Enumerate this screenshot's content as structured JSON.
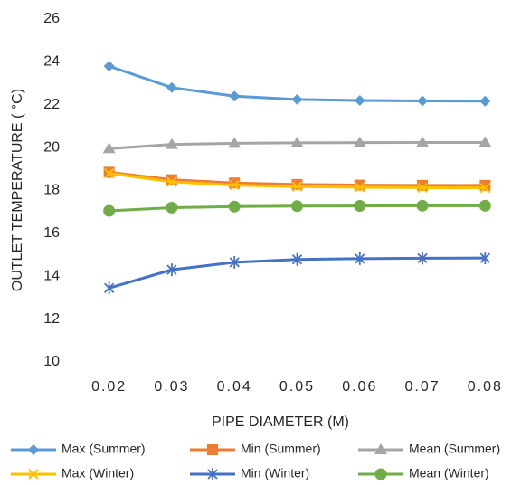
{
  "chart_data": {
    "type": "line",
    "x_label": "PIPE DIAMETER (M)",
    "y_label": "OUTLET TEMPERATURE ( °C)",
    "categories": [
      "0.02",
      "0.03",
      "0.04",
      "0.05",
      "0.06",
      "0.07",
      "0.08"
    ],
    "series": [
      {
        "name": "Max (Summer)",
        "color": "#5b9bd5",
        "marker": "diamond",
        "values": [
          23.8,
          22.8,
          22.4,
          22.25,
          22.2,
          22.18,
          22.17
        ]
      },
      {
        "name": "Min (Summer)",
        "color": "#ed7d31",
        "marker": "square",
        "values": [
          18.85,
          18.5,
          18.35,
          18.28,
          18.25,
          18.24,
          18.24
        ]
      },
      {
        "name": "Mean (Summer)",
        "color": "#a5a5a5",
        "marker": "triangle",
        "values": [
          19.95,
          20.15,
          20.2,
          20.22,
          20.23,
          20.24,
          20.24
        ]
      },
      {
        "name": "Max (Winter)",
        "color": "#ffc000",
        "marker": "x",
        "values": [
          18.8,
          18.4,
          18.25,
          18.18,
          18.15,
          18.13,
          18.12
        ]
      },
      {
        "name": "Min (Winter)",
        "color": "#4472c4",
        "marker": "star",
        "values": [
          13.45,
          14.3,
          14.65,
          14.78,
          14.82,
          14.84,
          14.85
        ]
      },
      {
        "name": "Mean (Winter)",
        "color": "#70ad47",
        "marker": "circle",
        "values": [
          17.05,
          17.2,
          17.25,
          17.27,
          17.28,
          17.29,
          17.29
        ]
      }
    ],
    "ylim": [
      10,
      26
    ],
    "yticks": [
      10,
      12,
      14,
      16,
      18,
      20,
      22,
      24,
      26
    ],
    "grid": false
  }
}
